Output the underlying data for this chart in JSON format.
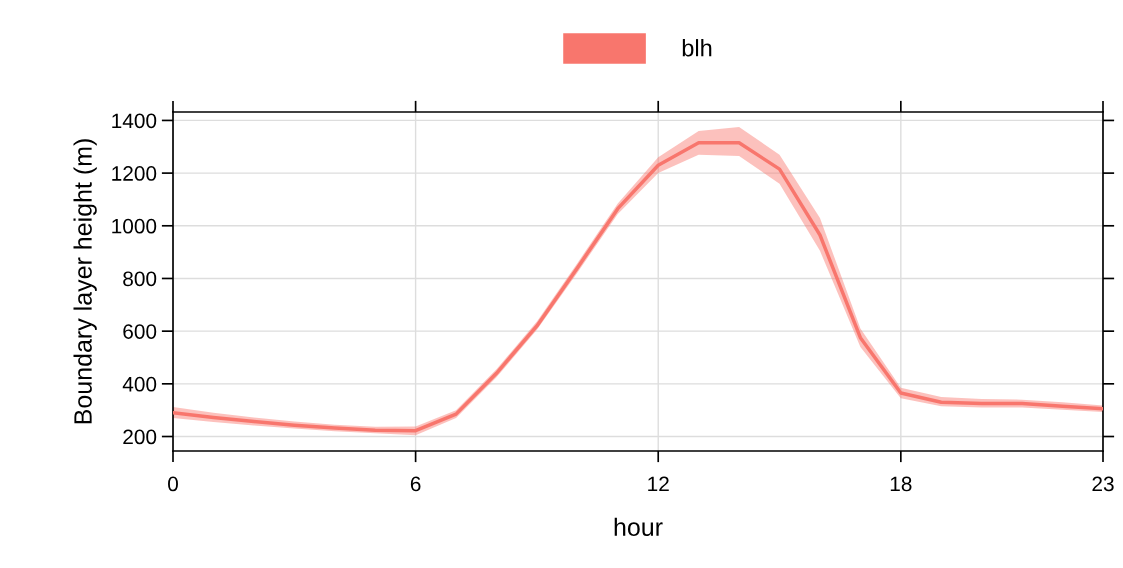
{
  "chart_data": {
    "type": "line",
    "xlabel": "hour",
    "ylabel": "Boundary layer height (m)",
    "x": [
      0,
      1,
      2,
      3,
      4,
      5,
      6,
      7,
      8,
      9,
      10,
      11,
      12,
      13,
      14,
      15,
      16,
      17,
      18,
      19,
      20,
      21,
      22,
      23
    ],
    "series": [
      {
        "name": "blh",
        "color": "#f8766d",
        "values": [
          290,
          272,
          257,
          243,
          232,
          224,
          222,
          285,
          440,
          620,
          840,
          1065,
          1230,
          1315,
          1315,
          1215,
          965,
          575,
          365,
          330,
          325,
          325,
          315,
          305
        ],
        "lower": [
          270,
          255,
          242,
          230,
          220,
          212,
          205,
          270,
          425,
          605,
          822,
          1045,
          1200,
          1270,
          1265,
          1160,
          905,
          540,
          345,
          315,
          310,
          310,
          302,
          293
        ],
        "upper": [
          312,
          290,
          272,
          257,
          245,
          237,
          238,
          300,
          455,
          637,
          858,
          1085,
          1260,
          1360,
          1375,
          1270,
          1030,
          610,
          385,
          350,
          342,
          340,
          330,
          318
        ]
      }
    ],
    "xlim": [
      0,
      23
    ],
    "xticks": [
      0,
      6,
      12,
      18,
      23
    ],
    "ylim": [
      145,
      1432
    ],
    "yticks": [
      200,
      400,
      600,
      800,
      1000,
      1200,
      1400
    ],
    "grid": true,
    "legend": "top",
    "line_style": "solid",
    "marker": "none"
  }
}
